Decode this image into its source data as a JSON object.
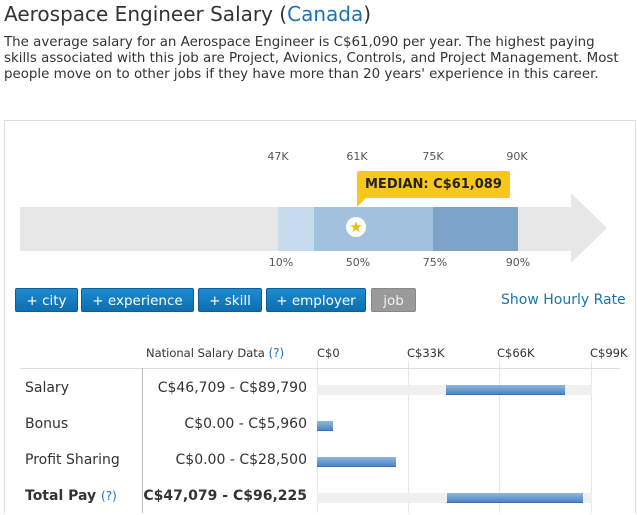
{
  "title": {
    "prefix": "Aerospace Engineer Salary (",
    "country": "Canada",
    "suffix": ")"
  },
  "description": "The average salary for an Aerospace Engineer is C$61,090 per year. The highest paying skills associated with this job are Project, Avionics, Controls, and Project Management. Most people move on to other jobs if they have more than 20 years' experience in this career.",
  "distribution": {
    "top_ticks": [
      "47K",
      "61K",
      "75K",
      "90K"
    ],
    "bottom_ticks": [
      "10%",
      "50%",
      "75%",
      "90%"
    ],
    "median_label": "MEDIAN: C$61,089",
    "colors": {
      "arrow": "#e7e7e7",
      "p10_25": "#c6dcee",
      "p25_50": "#a1c1df",
      "p50_75": "#a1c1df",
      "p75_90": "#7da3c8"
    }
  },
  "filters": {
    "buttons": [
      "+ city",
      "+ experience",
      "+ skill",
      "+ employer"
    ],
    "active": "job"
  },
  "hourly_link": "Show Hourly Rate",
  "table": {
    "header": "National Salary Data",
    "header_help": "(?)",
    "axis": [
      "C$0",
      "C$33K",
      "C$66K",
      "C$99K"
    ],
    "axis_max": 99000,
    "rows": [
      {
        "label": "Salary",
        "range": "C$46,709 - C$89,790",
        "low": 46709,
        "high": 89790,
        "bold": false
      },
      {
        "label": "Bonus",
        "range": "C$0.00 - C$5,960",
        "low": 0,
        "high": 5960,
        "bold": false
      },
      {
        "label": "Profit Sharing",
        "range": "C$0.00 - C$28,500",
        "low": 0,
        "high": 28500,
        "bold": false
      },
      {
        "label": "Total Pay",
        "range": "C$47,079 - C$96,225",
        "low": 47079,
        "high": 96225,
        "bold": true,
        "help": "(?)"
      }
    ]
  }
}
